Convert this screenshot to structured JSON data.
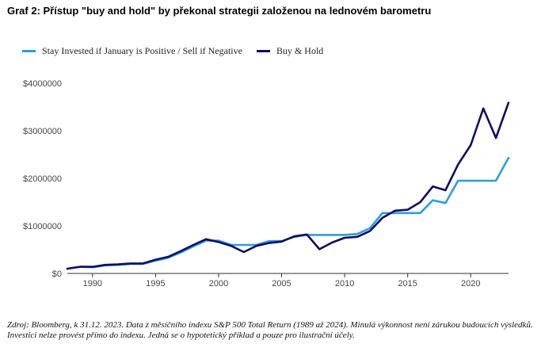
{
  "title": "Graf 2: Přístup \"buy and hold\" by překonal strategii založenou na lednovém barometru",
  "source_note": "Zdroj: Bloomberg, k 31.12. 2023. Data z měsíčního indexu S&P 500 Total Return (1989 až 2024). Minulá výkonnost není zárukou budoucích výsledků. Investici nelze provést přímo do indexu. Jedná se o hypotetický příklad a pouze pro ilustrační účely.",
  "colors": {
    "series_a": "#2b9de3",
    "series_b": "#0d0e63",
    "axis": "#333333",
    "text": "#444444"
  },
  "chart_data": {
    "type": "line",
    "title": "Graf 2: Přístup \"buy and hold\" by překonal strategii založenou na lednovém barometru",
    "xlabel": "",
    "ylabel": "",
    "xlim": [
      1988,
      2023
    ],
    "ylim": [
      0,
      4000000
    ],
    "grid": false,
    "legend_position": "top-left",
    "x_ticks": [
      1990,
      1995,
      2000,
      2005,
      2010,
      2015,
      2020
    ],
    "y_ticks": [
      0,
      1000000,
      2000000,
      3000000,
      4000000
    ],
    "y_tick_labels": [
      "$0",
      "$1000000",
      "$2000000",
      "$3000000",
      "$4000000"
    ],
    "x": [
      1988,
      1989,
      1990,
      1991,
      1992,
      1993,
      1994,
      1995,
      1996,
      1997,
      1998,
      1999,
      2000,
      2001,
      2002,
      2003,
      2004,
      2005,
      2006,
      2007,
      2008,
      2009,
      2010,
      2011,
      2012,
      2013,
      2014,
      2015,
      2016,
      2017,
      2018,
      2019,
      2020,
      2021,
      2022,
      2023
    ],
    "series": [
      {
        "name": "Stay Invested if January is Positive / Sell if Negative",
        "color": "#2b9de3",
        "values": [
          100000,
          140000,
          130000,
          170000,
          180000,
          200000,
          200000,
          270000,
          330000,
          440000,
          570000,
          690000,
          690000,
          600000,
          600000,
          600000,
          680000,
          680000,
          770000,
          810000,
          810000,
          810000,
          810000,
          830000,
          950000,
          1270000,
          1270000,
          1270000,
          1270000,
          1540000,
          1480000,
          1950000,
          1950000,
          1950000,
          1950000,
          2430000
        ]
      },
      {
        "name": "Buy & Hold",
        "color": "#0d0e63",
        "values": [
          100000,
          140000,
          140000,
          180000,
          190000,
          210000,
          210000,
          290000,
          350000,
          470000,
          600000,
          720000,
          660000,
          580000,
          450000,
          580000,
          640000,
          670000,
          780000,
          820000,
          510000,
          650000,
          750000,
          770000,
          890000,
          1170000,
          1320000,
          1340000,
          1500000,
          1830000,
          1750000,
          2290000,
          2700000,
          3470000,
          2850000,
          3590000
        ]
      }
    ]
  }
}
